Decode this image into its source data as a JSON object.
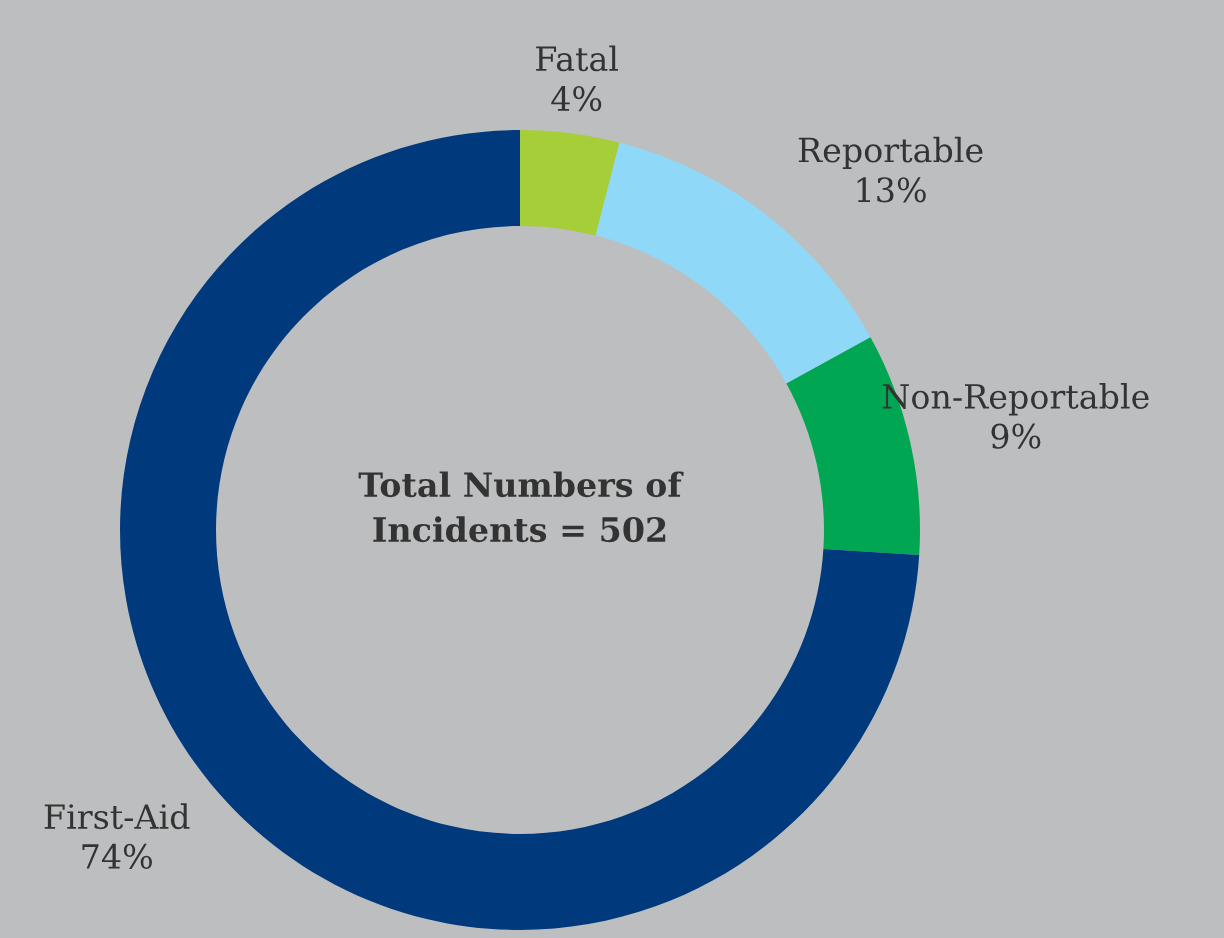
{
  "chart_data": {
    "type": "donut",
    "categories": [
      "Fatal",
      "Reportable",
      "Non-Reportable",
      "First-Aid"
    ],
    "values": [
      4,
      13,
      9,
      74
    ],
    "value_labels": [
      "4%",
      "13%",
      "9%",
      "74%"
    ],
    "colors": [
      "#a6ce39",
      "#8fd8f8",
      "#00a651",
      "#003a7d"
    ],
    "annotations": [
      "Total Numbers of\nIncidents = 502"
    ]
  }
}
